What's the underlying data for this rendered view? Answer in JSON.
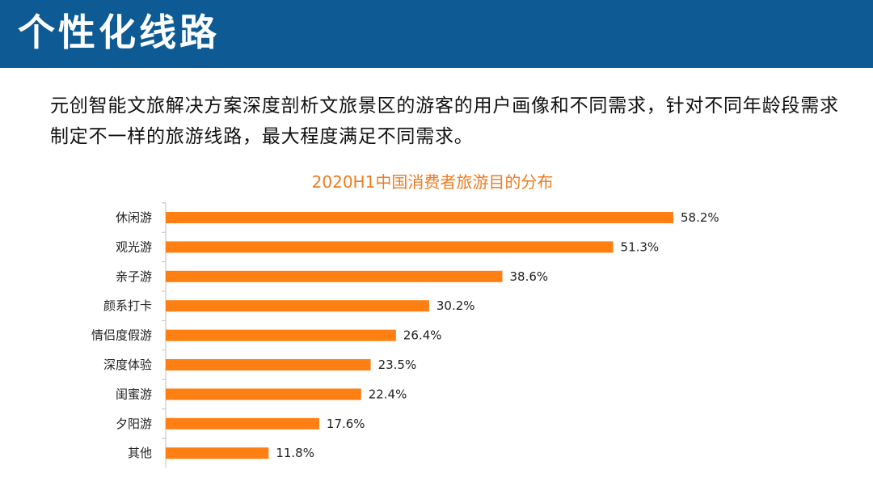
{
  "header": {
    "title": "个性化线路",
    "background_color": "#0d5a94"
  },
  "description": "元创智能文旅解决方案深度剖析文旅景区的游客的用户画像和不同需求，针对不同年龄段需求制定不一样的旅游线路，最大程度满足不同需求。",
  "chart_data": {
    "type": "bar",
    "orientation": "horizontal",
    "title": "2020H1中国消费者旅游目的分布",
    "categories": [
      "休闲游",
      "观光游",
      "亲子游",
      "颜系打卡",
      "情侣度假游",
      "深度体验",
      "闺蜜游",
      "夕阳游",
      "其他"
    ],
    "values": [
      58.2,
      51.3,
      38.6,
      30.2,
      26.4,
      23.5,
      22.4,
      17.6,
      11.8
    ],
    "value_labels": [
      "58.2%",
      "51.3%",
      "38.6%",
      "30.2%",
      "26.4%",
      "23.5%",
      "22.4%",
      "17.6%",
      "11.8%"
    ],
    "unit": "%",
    "bar_color": "#ff7f12",
    "title_color": "#ee7c22",
    "grid": false,
    "legend": "none",
    "xlim": [
      0,
      60
    ]
  }
}
